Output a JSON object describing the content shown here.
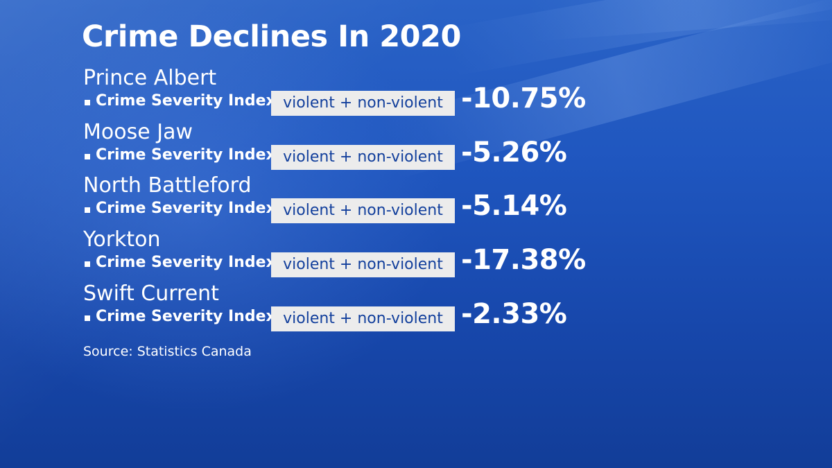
{
  "title": "Crime Declines In 2020",
  "index_label": "Crime Severity Index",
  "index_tag": "violent + non-violent",
  "regions": [
    {
      "name": "Prince Albert",
      "change": "-10.75%"
    },
    {
      "name": "Moose Jaw",
      "change": "-5.26%"
    },
    {
      "name": "North Battleford",
      "change": "-5.14%"
    },
    {
      "name": "Yorkton",
      "change": "-17.38%"
    },
    {
      "name": "Swift Current",
      "change": "-2.33%"
    }
  ],
  "source": "Source: Statistics Canada",
  "colors": {
    "background": "#1f56bf",
    "tag_background": "#ececec",
    "tag_text": "#123f9c",
    "text": "#ffffff"
  }
}
